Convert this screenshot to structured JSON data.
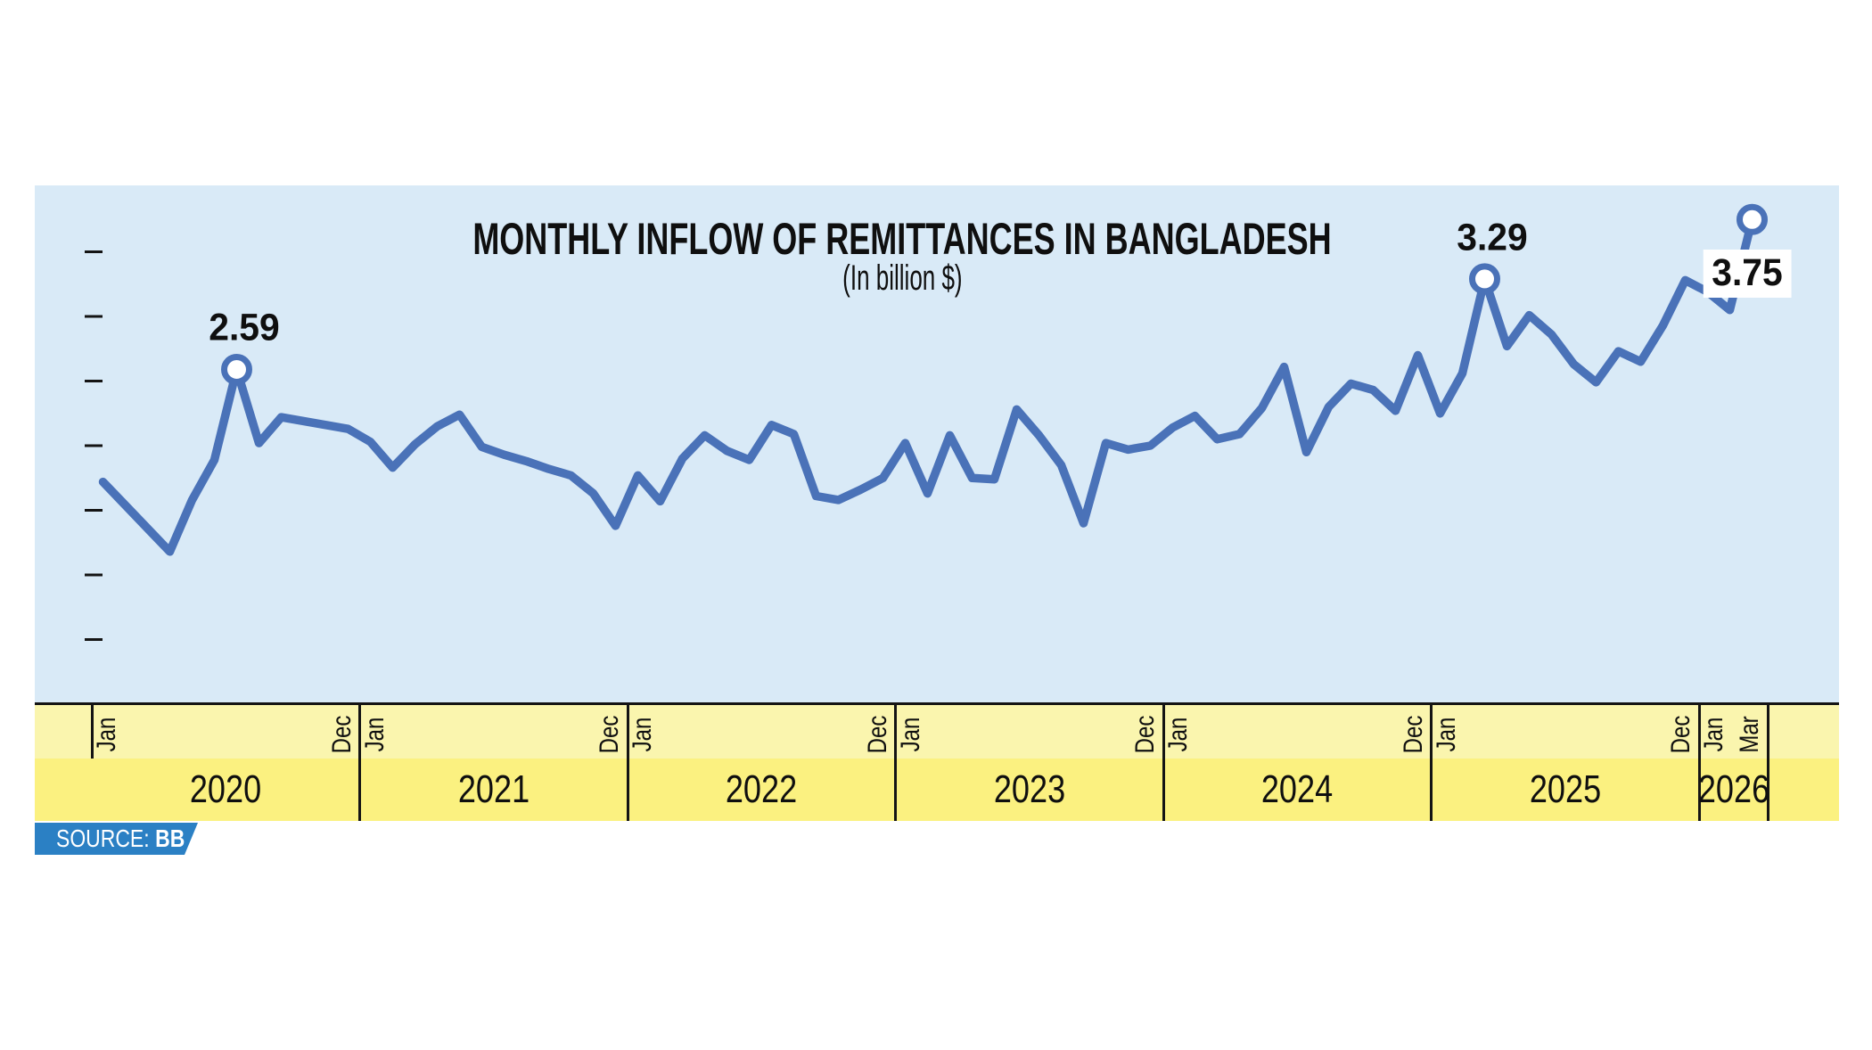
{
  "title": "MONTHLY INFLOW OF REMITTANCES IN BANGLADESH",
  "subtitle": "(In billion $)",
  "source": {
    "label": "SOURCE:",
    "value": "BB"
  },
  "colors": {
    "chart_background": "#d9eaf7",
    "line": "#4a72b8",
    "marker_fill": "#ffffff",
    "band_month": "#faf5ae",
    "band_year": "#fbf180",
    "axis": "#141414",
    "text": "#0f0f0f",
    "source_background": "#2b80c4",
    "source_text": "#ffffff",
    "annotation_box_background": "#ffffff"
  },
  "chart_data": {
    "type": "line",
    "title": "MONTHLY INFLOW OF REMITTANCES IN BANGLADESH",
    "subtitle": "(In billion $)",
    "unit": "billion $",
    "ylim": [
      0,
      4
    ],
    "yticks": [
      0.5,
      1.0,
      1.5,
      2.0,
      2.5,
      3.0,
      3.5
    ],
    "ytick_labels_visible": false,
    "grid": false,
    "legend": "none",
    "years": [
      {
        "year": "2020",
        "first_month_label": "Jan",
        "last_month_label": "Dec",
        "values": [
          1.72,
          1.54,
          1.36,
          1.18,
          1.58,
          1.89,
          2.59,
          2.02,
          2.22,
          2.19,
          2.16,
          2.13
        ]
      },
      {
        "year": "2021",
        "first_month_label": "Jan",
        "last_month_label": "Dec",
        "values": [
          2.03,
          1.83,
          2.01,
          2.15,
          2.24,
          1.99,
          1.93,
          1.88,
          1.82,
          1.77,
          1.63,
          1.38
        ]
      },
      {
        "year": "2022",
        "first_month_label": "Jan",
        "last_month_label": "Dec",
        "values": [
          1.77,
          1.57,
          1.9,
          2.08,
          1.96,
          1.89,
          2.16,
          2.09,
          1.61,
          1.58,
          1.66,
          1.75
        ]
      },
      {
        "year": "2023",
        "first_month_label": "Jan",
        "last_month_label": "Dec",
        "values": [
          2.02,
          1.63,
          2.08,
          1.75,
          1.74,
          2.28,
          2.08,
          1.85,
          1.4,
          2.02,
          1.97,
          2.0
        ]
      },
      {
        "year": "2024",
        "first_month_label": "Jan",
        "last_month_label": "Dec",
        "values": [
          2.14,
          2.23,
          2.05,
          2.09,
          2.29,
          2.61,
          1.95,
          2.3,
          2.48,
          2.43,
          2.27,
          2.7
        ]
      },
      {
        "year": "2025",
        "first_month_label": "Jan",
        "last_month_label": "Dec",
        "values": [
          2.25,
          2.56,
          3.29,
          2.77,
          3.01,
          2.86,
          2.63,
          2.49,
          2.73,
          2.65,
          2.93,
          3.28
        ]
      },
      {
        "year": "2026",
        "first_month_label": "Jan",
        "last_month_label": "Mar",
        "values": [
          3.19,
          3.05,
          3.75
        ]
      }
    ],
    "annotations": [
      {
        "label": "2.59",
        "year": "2020",
        "month": "Jul",
        "month_index": 6,
        "boxed": false
      },
      {
        "label": "3.29",
        "year": "2025",
        "month": "Mar",
        "month_index": 62,
        "boxed": false
      },
      {
        "label": "3.75",
        "year": "2026",
        "month": "Mar",
        "month_index": 74,
        "boxed": true
      }
    ]
  }
}
